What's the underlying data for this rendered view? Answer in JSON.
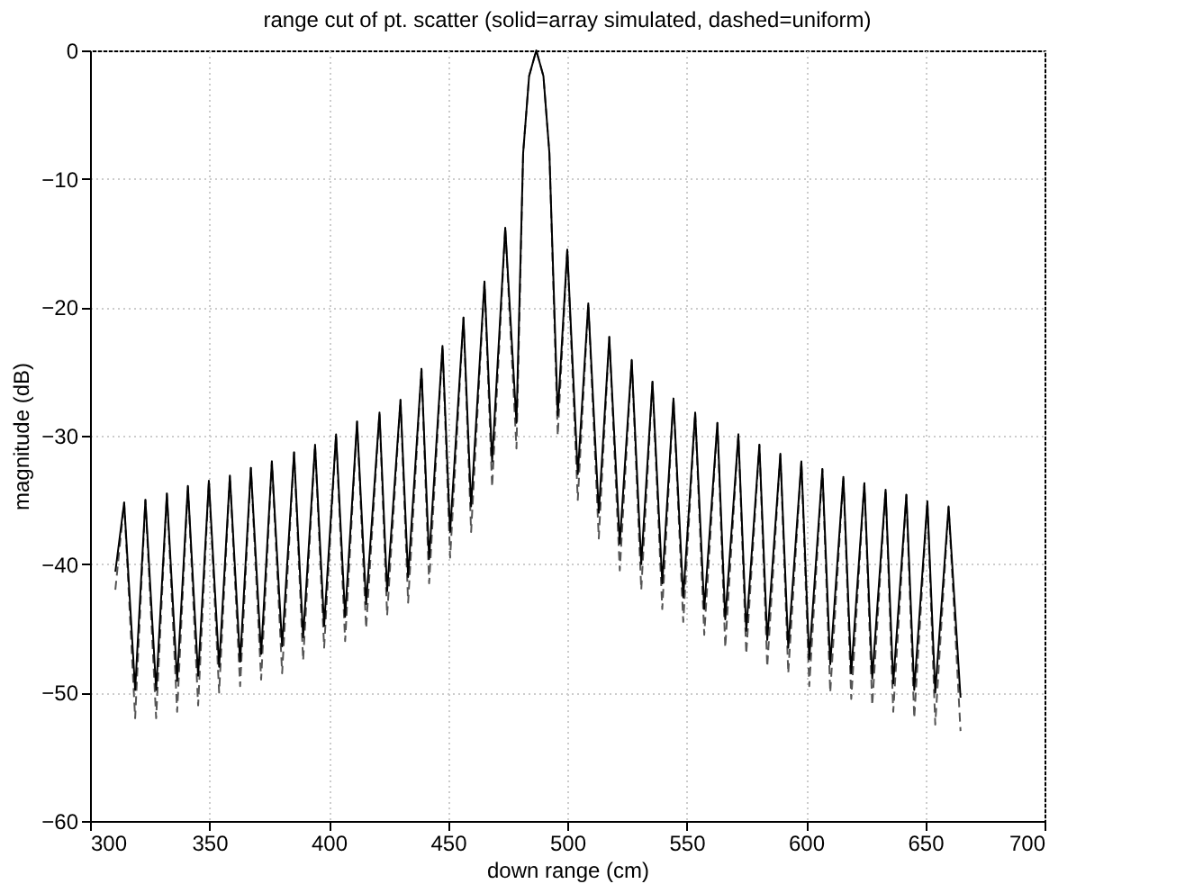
{
  "chart_data": {
    "type": "line",
    "title": "range cut of pt. scatter (solid=array simulated, dashed=uniform)",
    "xlabel": "down range (cm)",
    "ylabel": "magnitude (dB)",
    "x": [
      310.6,
      314.3,
      318.9,
      323.2,
      327.7,
      332.2,
      336.5,
      341.0,
      345.3,
      349.8,
      354.1,
      358.6,
      362.9,
      367.4,
      371.7,
      376.2,
      380.5,
      385.5,
      389.3,
      394.3,
      398.1,
      403.1,
      406.9,
      411.9,
      415.7,
      421.3,
      424.5,
      430.1,
      433.3,
      438.9,
      442.1,
      447.7,
      450.9,
      456.5,
      459.7,
      465.3,
      468.5,
      474.0,
      478.7,
      481.5,
      484.0,
      487.0,
      490.0,
      492.5,
      496.0,
      500.0,
      504.4,
      508.8,
      513.2,
      517.6,
      522.0,
      527.0,
      531.0,
      535.7,
      539.8,
      544.5,
      548.6,
      553.6,
      557.4,
      562.9,
      566.2,
      571.7,
      575.0,
      580.5,
      583.8,
      589.3,
      592.6,
      598.1,
      601.4,
      606.9,
      610.2,
      615.7,
      619.0,
      624.5,
      627.8,
      633.4,
      636.6,
      642.1,
      645.4,
      650.9,
      654.2,
      659.8,
      664.8
    ],
    "series": [
      {
        "color": "#000000",
        "line_style": "solid",
        "values": [
          -40.6,
          -35.2,
          -49.8,
          -35.0,
          -49.8,
          -34.5,
          -49.1,
          -33.9,
          -48.7,
          -33.5,
          -48.0,
          -33.1,
          -47.6,
          -32.5,
          -47.0,
          -32.0,
          -46.4,
          -31.3,
          -45.7,
          -30.7,
          -44.8,
          -29.9,
          -44.1,
          -28.9,
          -43.1,
          -28.2,
          -42.1,
          -27.2,
          -41.0,
          -24.8,
          -39.6,
          -23.0,
          -37.5,
          -20.8,
          -35.5,
          -18.0,
          -32.0,
          -13.8,
          -29.0,
          -8.0,
          -2.0,
          0,
          -2.0,
          -8.0,
          -28.4,
          -15.5,
          -33.0,
          -19.7,
          -36.0,
          -22.3,
          -38.4,
          -24.1,
          -40.0,
          -25.8,
          -41.5,
          -27.1,
          -42.6,
          -28.2,
          -43.5,
          -29.0,
          -44.3,
          -29.9,
          -45.2,
          -30.7,
          -45.9,
          -31.4,
          -46.5,
          -32.0,
          -47.4,
          -32.6,
          -47.8,
          -33.2,
          -48.5,
          -33.7,
          -48.9,
          -34.2,
          -49.3,
          -34.6,
          -49.8,
          -35.1,
          -50.0,
          -35.5,
          -50.4
        ]
      },
      {
        "color": "#555555",
        "line_style": "dashed",
        "values": [
          -42.0,
          -35.2,
          -52.0,
          -35.0,
          -52.0,
          -34.5,
          -51.5,
          -33.9,
          -51.0,
          -33.5,
          -50.0,
          -33.1,
          -49.5,
          -32.5,
          -49.0,
          -32.0,
          -48.5,
          -31.3,
          -47.5,
          -30.7,
          -46.5,
          -29.9,
          -46.0,
          -28.9,
          -45.0,
          -28.2,
          -44.0,
          -27.2,
          -43.0,
          -24.8,
          -41.5,
          -23.0,
          -39.5,
          -20.8,
          -37.5,
          -18.0,
          -34.0,
          -13.8,
          -31.0,
          -8.0,
          -2.0,
          0,
          -2.0,
          -8.0,
          -30.0,
          -15.5,
          -35.0,
          -19.7,
          -38.0,
          -22.3,
          -40.5,
          -24.1,
          -42.0,
          -25.8,
          -43.5,
          -27.1,
          -44.5,
          -28.2,
          -45.5,
          -29.0,
          -46.5,
          -29.9,
          -47.0,
          -30.7,
          -48.0,
          -31.4,
          -48.5,
          -32.0,
          -49.5,
          -32.6,
          -50.0,
          -33.2,
          -50.5,
          -33.7,
          -51.0,
          -34.2,
          -51.5,
          -34.6,
          -52.0,
          -35.1,
          -52.5,
          -35.5,
          -53.0
        ]
      }
    ],
    "xlim": [
      300,
      700
    ],
    "xticks": [
      300,
      350,
      400,
      450,
      500,
      550,
      600,
      650,
      700
    ],
    "ylim": [
      -60,
      0
    ],
    "yticks": [
      -60,
      -50,
      -40,
      -30,
      -20,
      -10,
      0
    ],
    "grid": true,
    "marker": "none"
  }
}
